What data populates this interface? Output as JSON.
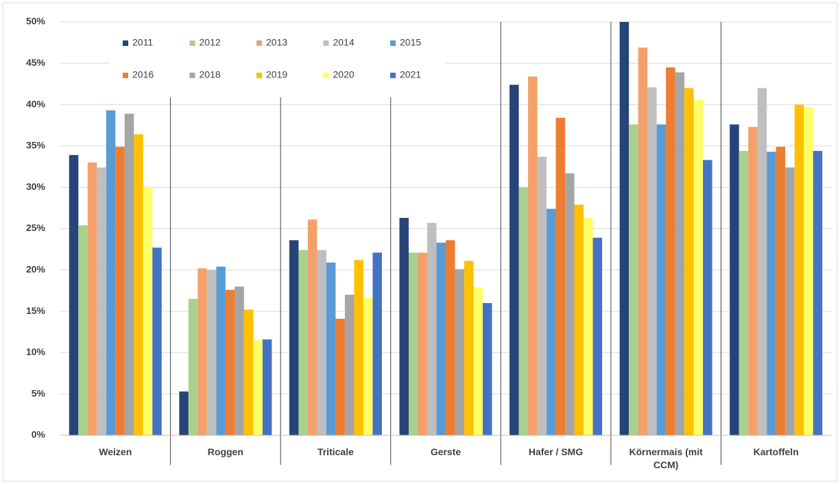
{
  "chart_data": {
    "type": "bar",
    "categories": [
      "Weizen",
      "Roggen",
      "Triticale",
      "Gerste",
      "Hafer / SMG",
      "Körnermais (mit CCM)",
      "Kartoffeln"
    ],
    "series": [
      {
        "name": "2011",
        "color": "#264478",
        "values": [
          33.9,
          5.3,
          23.6,
          26.3,
          42.4,
          50.0,
          37.6
        ]
      },
      {
        "name": "2012",
        "color": "#a9d18e",
        "values": [
          25.4,
          16.5,
          22.4,
          22.1,
          30.0,
          37.6,
          34.4
        ]
      },
      {
        "name": "2013",
        "color": "#f4a06a",
        "values": [
          33.0,
          20.2,
          26.1,
          22.1,
          43.4,
          46.9,
          37.3
        ]
      },
      {
        "name": "2014",
        "color": "#bfbfbf",
        "values": [
          32.4,
          20.0,
          22.4,
          25.7,
          33.7,
          42.1,
          42.0
        ]
      },
      {
        "name": "2015",
        "color": "#5b9bd5",
        "values": [
          39.3,
          20.4,
          20.9,
          23.3,
          27.4,
          37.6,
          34.3
        ]
      },
      {
        "name": "2016",
        "color": "#ed7d31",
        "values": [
          34.9,
          17.6,
          14.1,
          23.6,
          38.4,
          44.5,
          34.9
        ]
      },
      {
        "name": "2018",
        "color": "#a5a5a5",
        "values": [
          38.9,
          18.0,
          17.0,
          20.1,
          31.7,
          43.9,
          32.4
        ]
      },
      {
        "name": "2019",
        "color": "#ffc000",
        "values": [
          36.4,
          15.2,
          21.2,
          21.1,
          27.9,
          42.0,
          40.0
        ]
      },
      {
        "name": "2020",
        "color": "#ffff66",
        "values": [
          30.0,
          11.5,
          16.6,
          17.9,
          26.3,
          40.6,
          39.7
        ]
      },
      {
        "name": "2021",
        "color": "#4472c4",
        "values": [
          22.7,
          11.6,
          22.1,
          16.0,
          23.9,
          33.3,
          34.4
        ]
      }
    ],
    "ylim": [
      0,
      50
    ],
    "yticks": [
      {
        "value": 0,
        "label": "0%"
      },
      {
        "value": 5,
        "label": "5%"
      },
      {
        "value": 10,
        "label": "10%"
      },
      {
        "value": 15,
        "label": "15%"
      },
      {
        "value": 20,
        "label": "20%"
      },
      {
        "value": 25,
        "label": "25%"
      },
      {
        "value": 30,
        "label": "30%"
      },
      {
        "value": 35,
        "label": "35%"
      },
      {
        "value": 40,
        "label": "40%"
      },
      {
        "value": 45,
        "label": "45%"
      },
      {
        "value": 50,
        "label": "50%"
      }
    ],
    "grid": true
  }
}
